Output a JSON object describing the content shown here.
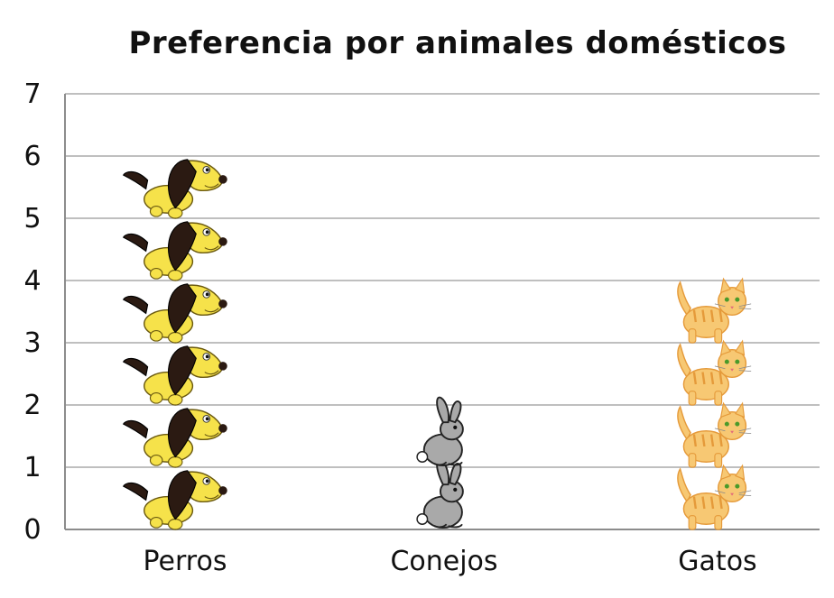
{
  "chart_data": {
    "type": "bar",
    "title": "Preferencia por animales domésticos",
    "xlabel": "",
    "ylabel": "",
    "categories": [
      "Perros",
      "Conejos",
      "Gatos"
    ],
    "values": [
      6,
      2,
      4
    ],
    "ylim": [
      0,
      7
    ],
    "yticks": [
      "0",
      "1",
      "2",
      "3",
      "4",
      "5",
      "6",
      "7"
    ],
    "grid": true,
    "legend": "none",
    "pictograph_icons": [
      "dog-icon",
      "rabbit-icon",
      "cat-icon"
    ],
    "colors": {
      "grid": "#bfbfbf",
      "axis": "#8c8c8c",
      "text": "#111111",
      "dog_body": "#f6e24a",
      "dog_ear": "#2b1a12",
      "rabbit": "#a9a9a9",
      "cat": "#f7c873",
      "cat_stripe": "#e59a3a"
    }
  }
}
